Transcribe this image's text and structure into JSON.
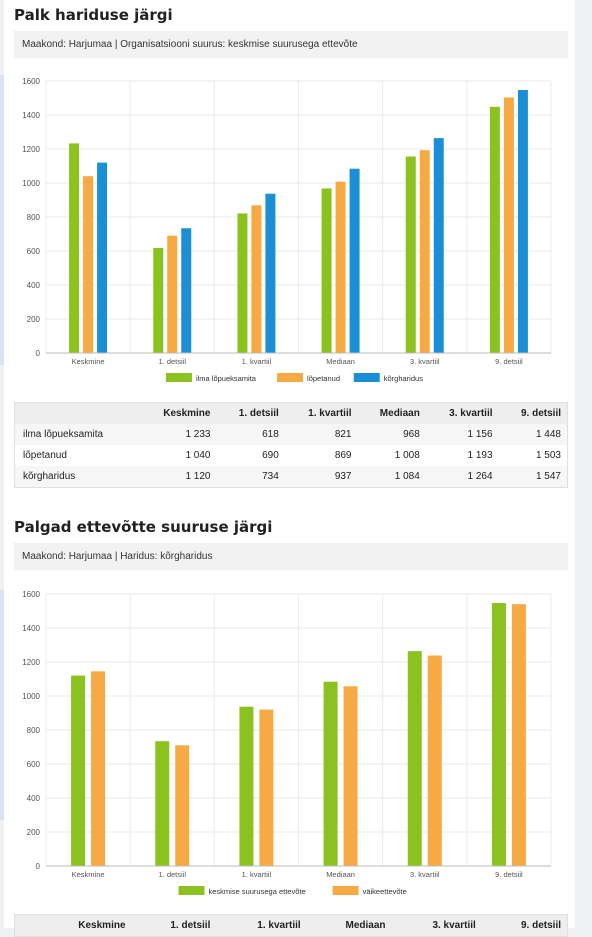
{
  "sections": [
    {
      "title": "Palk hariduse järgi",
      "filter": "Maakond: Harjumaa | Organisatsiooni suurus: keskmise suurusega ettevõte",
      "table": {
        "headers": [
          "",
          "Keskmine",
          "1. detsiil",
          "1. kvartiil",
          "Mediaan",
          "3. kvartiil",
          "9. detsiil"
        ],
        "rows": [
          [
            "ilma lõpueksamita",
            "1 233",
            "618",
            "821",
            "968",
            "1 156",
            "1 448"
          ],
          [
            "lõpetanud",
            "1 040",
            "690",
            "869",
            "1 008",
            "1 193",
            "1 503"
          ],
          [
            "kõrgharidus",
            "1 120",
            "734",
            "937",
            "1 084",
            "1 264",
            "1 547"
          ]
        ]
      }
    },
    {
      "title": "Palgad ettevõtte suuruse järgi",
      "filter": "Maakond: Harjumaa | Haridus: kõrgharidus",
      "table": {
        "headers": [
          "",
          "Keskmine",
          "1. detsiil",
          "1. kvartiil",
          "Mediaan",
          "3. kvartiil",
          "9. detsiil"
        ],
        "rows": []
      }
    }
  ],
  "chart_data": [
    {
      "type": "bar",
      "categories": [
        "Keskmine",
        "1. detsiil",
        "1. kvartiil",
        "Mediaan",
        "3. kvartiil",
        "9. detsiil"
      ],
      "ylim": [
        0,
        1600
      ],
      "yticks": [
        0,
        200,
        400,
        600,
        800,
        1000,
        1200,
        1400,
        1600
      ],
      "grid": true,
      "legend_position": "bottom",
      "series": [
        {
          "name": "ilma lõpueksamita",
          "color": "#8cc21f",
          "values": [
            1233,
            618,
            821,
            968,
            1156,
            1448
          ]
        },
        {
          "name": "lõpetanud",
          "color": "#f7a944",
          "values": [
            1040,
            690,
            869,
            1008,
            1193,
            1503
          ]
        },
        {
          "name": "kõrgharidus",
          "color": "#1b8fd6",
          "values": [
            1120,
            734,
            937,
            1084,
            1264,
            1547
          ]
        }
      ]
    },
    {
      "type": "bar",
      "categories": [
        "Keskmine",
        "1. detsiil",
        "1. kvartiil",
        "Mediaan",
        "3. kvartiil",
        "9. detsiil"
      ],
      "ylim": [
        0,
        1600
      ],
      "yticks": [
        0,
        200,
        400,
        600,
        800,
        1000,
        1200,
        1400,
        1600
      ],
      "grid": true,
      "legend_position": "bottom",
      "series": [
        {
          "name": "keskmise suurusega ettevõte",
          "color": "#8cc21f",
          "values": [
            1120,
            734,
            937,
            1084,
            1264,
            1547
          ]
        },
        {
          "name": "väikeettevõte",
          "color": "#f7a944",
          "values": [
            1145,
            710,
            920,
            1057,
            1238,
            1540
          ]
        }
      ]
    }
  ]
}
